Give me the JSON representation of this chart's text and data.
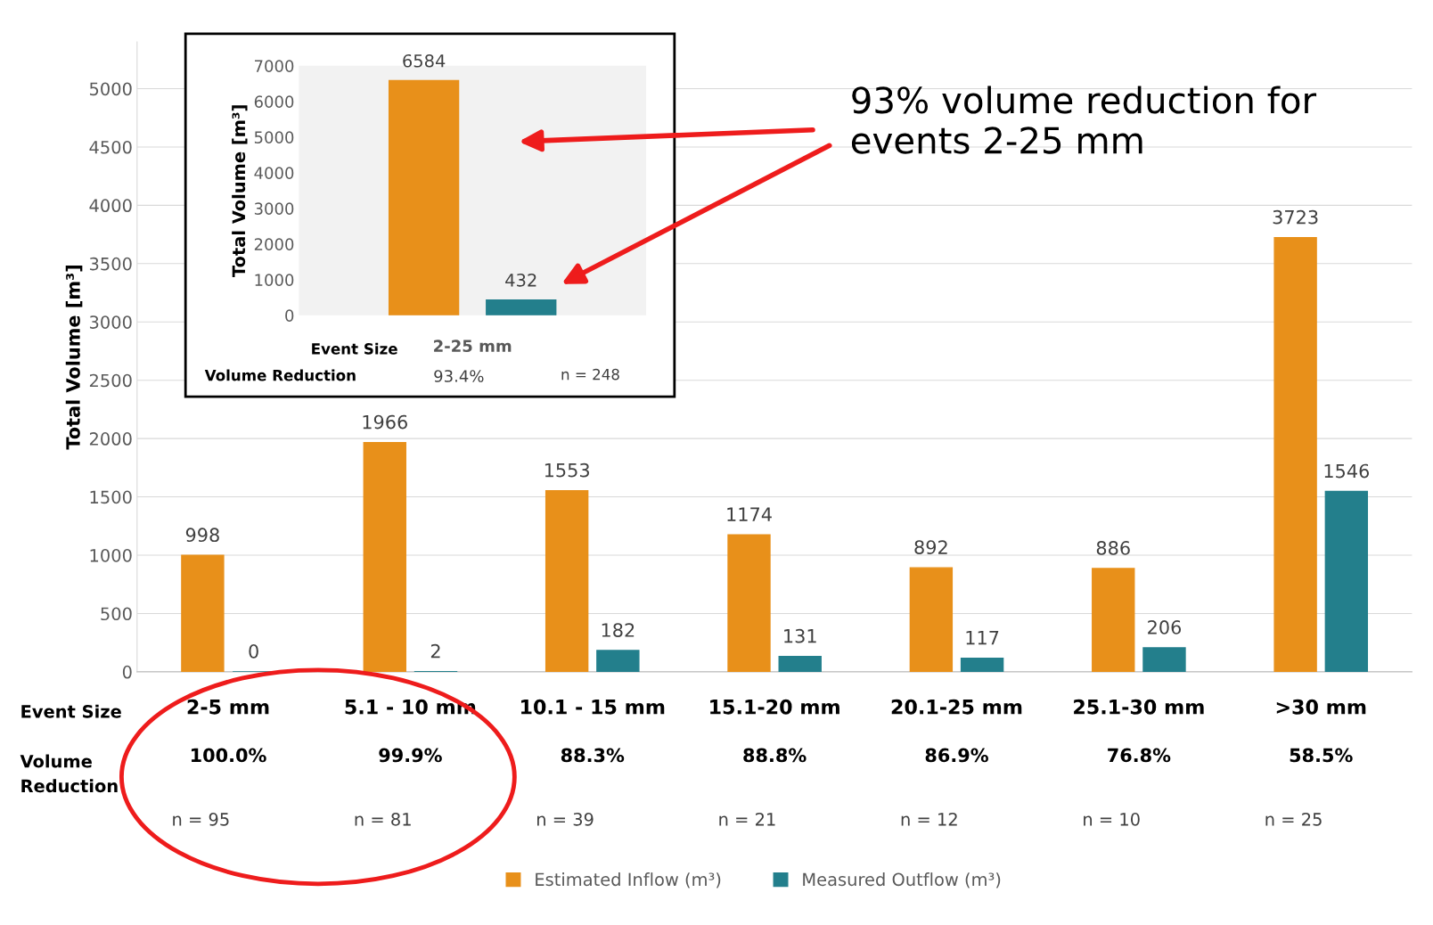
{
  "chart_data": [
    {
      "type": "bar",
      "ylabel": "Total Volume [m³]",
      "categories": [
        "2-5 mm",
        "5.1 - 10 mm",
        "10.1 - 15 mm",
        "15.1-20 mm",
        "20.1-25 mm",
        "25.1-30 mm",
        ">30 mm"
      ],
      "series": [
        {
          "name": "Estimated Inflow (m³)",
          "color": "#e8901a",
          "values": [
            998,
            1966,
            1553,
            1174,
            892,
            886,
            3723
          ]
        },
        {
          "name": "Measured Outflow (m³)",
          "color": "#237f8c",
          "values": [
            0,
            2,
            182,
            131,
            117,
            206,
            1546
          ]
        }
      ],
      "ylim": [
        0,
        5400
      ],
      "yticks": [
        0,
        500,
        1000,
        1500,
        2000,
        2500,
        3000,
        3500,
        4000,
        4500,
        5000
      ],
      "grid": "y",
      "legend": "bottom",
      "data_labels": true,
      "annotations": [
        "Event Size",
        "Volume\nReduction",
        "100.0%",
        "99.9%",
        "88.3%",
        "88.8%",
        "86.9%",
        "76.8%",
        "58.5%",
        "n = 95",
        "n = 81",
        "n = 39",
        "n = 21",
        "n = 12",
        "n = 10",
        "n = 25",
        "93% volume reduction for\nevents 2-25 mm"
      ]
    },
    {
      "type": "bar",
      "ylabel": "Total Volume [m³]",
      "categories": [
        null
      ],
      "series": [
        {
          "color": "#e8901a",
          "values": [
            6584
          ]
        },
        {
          "color": "#237f8c",
          "values": [
            432
          ]
        }
      ],
      "ylim": [
        0,
        7000
      ],
      "yticks": [
        0,
        1000,
        2000,
        3000,
        4000,
        5000,
        6000,
        7000
      ],
      "data_labels": true,
      "annotations": [
        "Event Size",
        "2-25 mm",
        "Volume Reduction",
        "93.4%",
        "n = 248"
      ]
    }
  ]
}
